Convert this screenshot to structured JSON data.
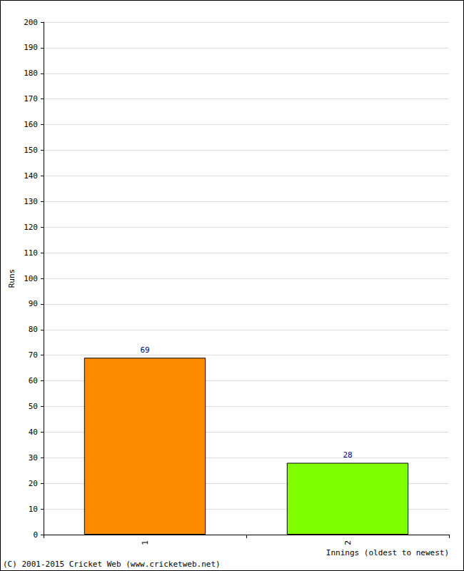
{
  "chart_data": {
    "type": "bar",
    "categories": [
      "1",
      "2"
    ],
    "values": [
      69,
      28
    ],
    "colors": [
      "#ff8c00",
      "#80ff00"
    ],
    "x_label": "Innings (oldest to newest)",
    "y_label": "Runs",
    "ylim": [
      0,
      200
    ],
    "yticks": [
      0,
      10,
      20,
      30,
      40,
      50,
      60,
      70,
      80,
      90,
      100,
      110,
      120,
      130,
      140,
      150,
      160,
      170,
      180,
      190,
      200
    ],
    "grid": true,
    "data_labels": true,
    "annotations": [
      "(C) 2001-2015 Cricket Web (www.cricketweb.net)"
    ]
  }
}
